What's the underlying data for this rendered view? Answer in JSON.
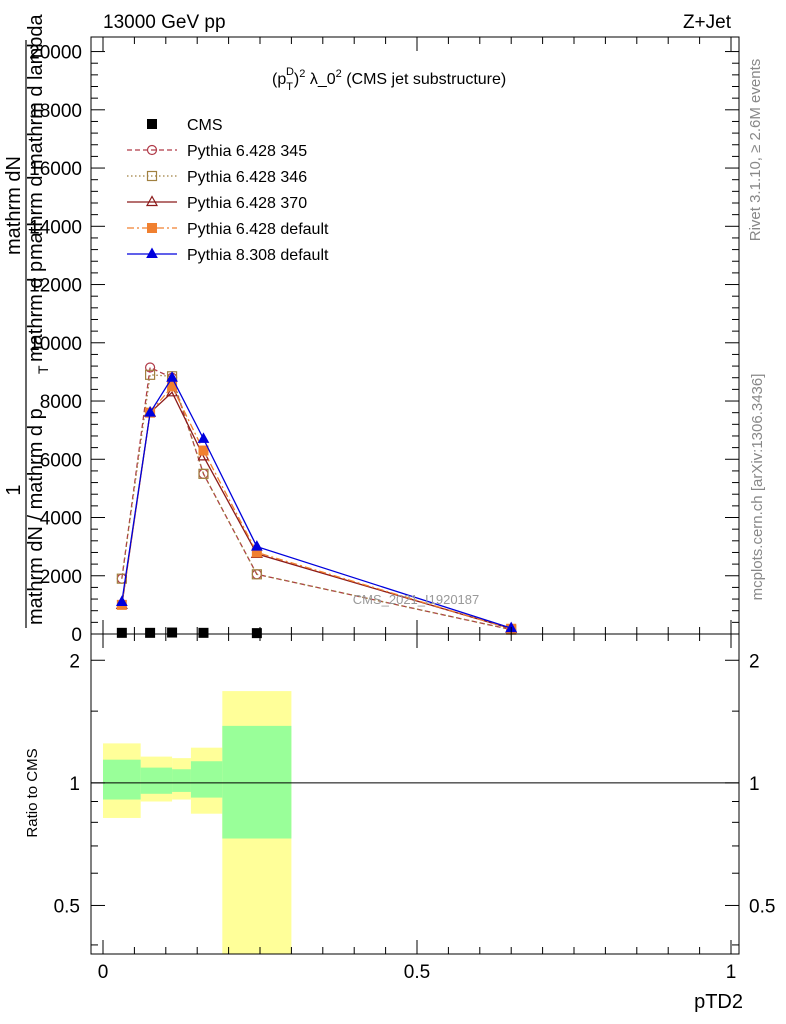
{
  "header": {
    "left": "13000 GeV pp",
    "right": "Z+Jet"
  },
  "side": {
    "rivet": "Rivet 3.1.10, ≥ 2.6M events",
    "mcplots": "mcplots.cern.ch [arXiv:1306.3436]"
  },
  "chart_data": [
    {
      "type": "line",
      "title": "(p_T^D)^2 λ_0^2 (CMS jet substructure)",
      "title_parts": {
        "p": "(p",
        "sup_d": "D",
        "sub_t": "T",
        "close": ")",
        "sup_2": "2",
        "mid": " λ_0",
        "sup_2b": "2",
        "tail": " (CMS jet substructure)"
      },
      "ylabel_lines": [
        "mathrm dN / mathrm d p",
        "mathrm d p",
        "mathrm dN"
      ],
      "ylabel_one": "1",
      "ylabel_parts": {
        "line1": "mathrm dN / mathrm d p",
        "line1_sub": "T",
        "line2": "mathrm d p",
        "line2_sub": "T",
        "line2_tail": "mathrm d lambda",
        "line3": "mathrm dN",
        "line3_overlap": "mathrm d mathrm d lambda",
        "one": "1"
      },
      "watermark": "CMS_2021_I1920187",
      "xlabel": "pTD2",
      "xlim": [
        0,
        1
      ],
      "ylim": [
        0,
        20500
      ],
      "yticks": [
        0,
        2000,
        4000,
        6000,
        8000,
        10000,
        12000,
        14000,
        16000,
        18000,
        20000
      ],
      "ytick_labels": [
        "0",
        "2000",
        "4000",
        "6000",
        "8000",
        "10000",
        "12000",
        "14000",
        "16000",
        "18000",
        "20000"
      ],
      "xticks": [
        0,
        0.5,
        1
      ],
      "xtick_labels": [
        "0",
        "0.5",
        "1"
      ],
      "bin_edges": [
        0,
        0.06,
        0.11,
        0.14,
        0.19,
        0.3,
        1.0
      ],
      "series": [
        {
          "name": "CMS",
          "color": "#000000",
          "marker": "square",
          "dash": "",
          "x": [
            0.03,
            0.075,
            0.11,
            0.16,
            0.245
          ],
          "y": [
            40,
            40,
            50,
            40,
            30
          ]
        },
        {
          "name": "Pythia 6.428 345",
          "color": "#b03a48",
          "marker": "circle-open",
          "dash": "5,3",
          "x": [
            0.03,
            0.075,
            0.11,
            0.16,
            0.245,
            0.65
          ],
          "y": [
            1900,
            9150,
            8800,
            5500,
            2050,
            150
          ]
        },
        {
          "name": "Pythia 6.428 346",
          "color": "#a08040",
          "marker": "square-open",
          "dash": "1.5,2.5",
          "x": [
            0.03,
            0.075,
            0.11,
            0.16,
            0.245,
            0.65
          ],
          "y": [
            1900,
            8900,
            8850,
            5500,
            2050,
            150
          ]
        },
        {
          "name": "Pythia 6.428 370",
          "color": "#8b1a1a",
          "marker": "triangle-open",
          "dash": "",
          "x": [
            0.03,
            0.075,
            0.11,
            0.16,
            0.245,
            0.65
          ],
          "y": [
            1000,
            7600,
            8300,
            6100,
            2750,
            180
          ]
        },
        {
          "name": "Pythia 6.428 default",
          "color": "#f08030",
          "marker": "square",
          "dash": "7,3,2,3",
          "x": [
            0.03,
            0.075,
            0.11,
            0.16,
            0.245,
            0.65
          ],
          "y": [
            1000,
            7600,
            8500,
            6300,
            2800,
            180
          ]
        },
        {
          "name": "Pythia 8.308 default",
          "color": "#0000dd",
          "marker": "triangle",
          "dash": "",
          "x": [
            0.03,
            0.075,
            0.11,
            0.16,
            0.245,
            0.65
          ],
          "y": [
            1100,
            7600,
            8800,
            6700,
            3000,
            200
          ]
        }
      ]
    },
    {
      "type": "area",
      "ylabel": "Ratio to CMS",
      "xlabel": "pTD2",
      "xlim": [
        0,
        1
      ],
      "ylim": [
        0.38,
        2.32
      ],
      "yscale": "log",
      "yticks": [
        0.5,
        1,
        2
      ],
      "ytick_labels": [
        "0.5",
        "1",
        "2"
      ],
      "xticks": [
        0,
        0.5,
        1
      ],
      "xtick_labels": [
        "0",
        "0.5",
        "1"
      ],
      "bands": {
        "bin_edges": [
          0,
          0.06,
          0.11,
          0.14,
          0.19,
          0.3,
          1.0
        ],
        "yellow": {
          "color": "#ffff99",
          "low": [
            0.82,
            0.9,
            0.91,
            0.84,
            0.38
          ],
          "high": [
            1.25,
            1.16,
            1.15,
            1.22,
            1.68
          ]
        },
        "green": {
          "color": "#99ff99",
          "low": [
            0.91,
            0.94,
            0.95,
            0.92,
            0.73
          ],
          "high": [
            1.14,
            1.09,
            1.08,
            1.13,
            1.38
          ]
        }
      }
    }
  ]
}
